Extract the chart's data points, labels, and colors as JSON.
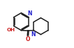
{
  "bg_color": "#ffffff",
  "bond_color": "#1a1a1a",
  "n_color": "#2020cc",
  "o_color": "#cc2020",
  "line_width": 1.1,
  "figsize": [
    1.06,
    0.69
  ],
  "dpi": 100,
  "xlim": [
    0,
    10.6
  ],
  "ylim": [
    0,
    6.9
  ]
}
